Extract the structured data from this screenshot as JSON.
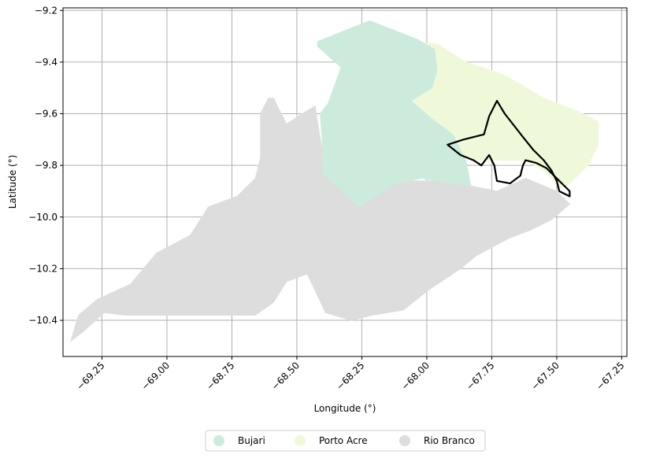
{
  "map": {
    "xlabel": "Longitude (°)",
    "ylabel": "Latitude (°)",
    "grid": true,
    "xlim": [
      -69.4,
      -67.23
    ],
    "ylim": [
      -10.54,
      -9.19
    ],
    "xticks": [
      -69.25,
      -69.0,
      -68.75,
      -68.5,
      -68.25,
      -68.0,
      -67.75,
      -67.5,
      -67.25
    ],
    "xtick_labels": [
      "−69.25",
      "−69.00",
      "−68.75",
      "−68.50",
      "−68.25",
      "−68.00",
      "−67.75",
      "−67.50",
      "−67.25"
    ],
    "yticks": [
      -9.2,
      -9.4,
      -9.6,
      -9.8,
      -10.0,
      -10.2,
      -10.4
    ],
    "ytick_labels": [
      "−9.2",
      "−9.4",
      "−9.6",
      "−9.8",
      "−10.0",
      "−10.2",
      "−10.4"
    ],
    "regions": [
      {
        "name": "Bujari",
        "color": "#cdebdd",
        "polygon": [
          [
            -68.42,
            -9.32
          ],
          [
            -68.22,
            -9.24
          ],
          [
            -68.04,
            -9.31
          ],
          [
            -67.97,
            -9.35
          ],
          [
            -67.96,
            -9.43
          ],
          [
            -67.98,
            -9.5
          ],
          [
            -68.06,
            -9.55
          ],
          [
            -67.98,
            -9.62
          ],
          [
            -67.9,
            -9.68
          ],
          [
            -67.85,
            -9.78
          ],
          [
            -67.83,
            -9.88
          ],
          [
            -67.96,
            -9.86
          ],
          [
            -68.02,
            -9.85
          ],
          [
            -68.12,
            -9.87
          ],
          [
            -68.26,
            -9.96
          ],
          [
            -68.4,
            -9.83
          ],
          [
            -68.4,
            -9.75
          ],
          [
            -68.41,
            -9.6
          ],
          [
            -68.38,
            -9.56
          ],
          [
            -68.33,
            -9.42
          ],
          [
            -68.42,
            -9.34
          ]
        ]
      },
      {
        "name": "Porto Acre",
        "color": "#eff9da",
        "polygon": [
          [
            -68.06,
            -9.32
          ],
          [
            -67.96,
            -9.33
          ],
          [
            -67.85,
            -9.4
          ],
          [
            -67.7,
            -9.45
          ],
          [
            -67.55,
            -9.54
          ],
          [
            -67.42,
            -9.59
          ],
          [
            -67.34,
            -9.63
          ],
          [
            -67.34,
            -9.72
          ],
          [
            -67.38,
            -9.8
          ],
          [
            -67.43,
            -9.85
          ],
          [
            -67.46,
            -9.88
          ],
          [
            -67.49,
            -9.89
          ],
          [
            -67.51,
            -9.86
          ],
          [
            -67.55,
            -9.82
          ],
          [
            -67.62,
            -9.78
          ],
          [
            -67.72,
            -9.78
          ],
          [
            -67.83,
            -9.78
          ],
          [
            -67.92,
            -9.73
          ],
          [
            -67.98,
            -9.64
          ],
          [
            -68.06,
            -9.56
          ],
          [
            -68.0,
            -9.49
          ],
          [
            -68.03,
            -9.43
          ],
          [
            -68.06,
            -9.37
          ]
        ]
      },
      {
        "name": "Rio Branco",
        "color": "#dddddd",
        "polygon": [
          [
            -68.59,
            -9.54
          ],
          [
            -68.54,
            -9.64
          ],
          [
            -68.48,
            -9.6
          ],
          [
            -68.43,
            -9.57
          ],
          [
            -68.41,
            -9.7
          ],
          [
            -68.39,
            -9.81
          ],
          [
            -68.28,
            -9.9
          ],
          [
            -68.26,
            -9.96
          ],
          [
            -68.17,
            -9.89
          ],
          [
            -68.09,
            -9.86
          ],
          [
            -67.97,
            -9.86
          ],
          [
            -67.83,
            -9.88
          ],
          [
            -67.73,
            -9.9
          ],
          [
            -67.62,
            -9.85
          ],
          [
            -67.5,
            -9.9
          ],
          [
            -67.45,
            -9.95
          ],
          [
            -67.52,
            -10.01
          ],
          [
            -67.6,
            -10.05
          ],
          [
            -67.68,
            -10.08
          ],
          [
            -67.81,
            -10.15
          ],
          [
            -67.87,
            -10.2
          ],
          [
            -67.99,
            -10.28
          ],
          [
            -68.09,
            -10.36
          ],
          [
            -68.21,
            -10.38
          ],
          [
            -68.29,
            -10.4
          ],
          [
            -68.39,
            -10.37
          ],
          [
            -68.46,
            -10.22
          ],
          [
            -68.54,
            -10.25
          ],
          [
            -68.59,
            -10.33
          ],
          [
            -68.66,
            -10.38
          ],
          [
            -69.02,
            -10.38
          ],
          [
            -69.16,
            -10.38
          ],
          [
            -69.24,
            -10.37
          ],
          [
            -69.33,
            -10.45
          ],
          [
            -69.37,
            -10.48
          ],
          [
            -69.34,
            -10.38
          ],
          [
            -69.27,
            -10.32
          ],
          [
            -69.14,
            -10.26
          ],
          [
            -69.04,
            -10.14
          ],
          [
            -68.91,
            -10.07
          ],
          [
            -68.84,
            -9.96
          ],
          [
            -68.73,
            -9.92
          ],
          [
            -68.66,
            -9.85
          ],
          [
            -68.64,
            -9.77
          ],
          [
            -68.64,
            -9.6
          ],
          [
            -68.61,
            -9.54
          ]
        ]
      }
    ],
    "outline": [
      [
        -67.92,
        -9.72
      ],
      [
        -67.87,
        -9.76
      ],
      [
        -67.82,
        -9.78
      ],
      [
        -67.79,
        -9.8
      ],
      [
        -67.76,
        -9.76
      ],
      [
        -67.74,
        -9.8
      ],
      [
        -67.73,
        -9.86
      ],
      [
        -67.68,
        -9.87
      ],
      [
        -67.64,
        -9.84
      ],
      [
        -67.63,
        -9.8
      ],
      [
        -67.62,
        -9.78
      ],
      [
        -67.58,
        -9.79
      ],
      [
        -67.54,
        -9.81
      ],
      [
        -67.51,
        -9.84
      ],
      [
        -67.47,
        -9.88
      ],
      [
        -67.45,
        -9.9
      ],
      [
        -67.45,
        -9.92
      ],
      [
        -67.49,
        -9.9
      ],
      [
        -67.5,
        -9.86
      ],
      [
        -67.52,
        -9.82
      ],
      [
        -67.55,
        -9.78
      ],
      [
        -67.59,
        -9.74
      ],
      [
        -67.63,
        -9.69
      ],
      [
        -67.7,
        -9.6
      ],
      [
        -67.73,
        -9.55
      ],
      [
        -67.76,
        -9.61
      ],
      [
        -67.78,
        -9.68
      ],
      [
        -67.86,
        -9.7
      ]
    ],
    "legend": {
      "items": [
        {
          "label": "Bujari",
          "color": "#cdebdd"
        },
        {
          "label": "Porto Acre",
          "color": "#eff9da"
        },
        {
          "label": "Rio Branco",
          "color": "#dddddd"
        }
      ]
    }
  }
}
